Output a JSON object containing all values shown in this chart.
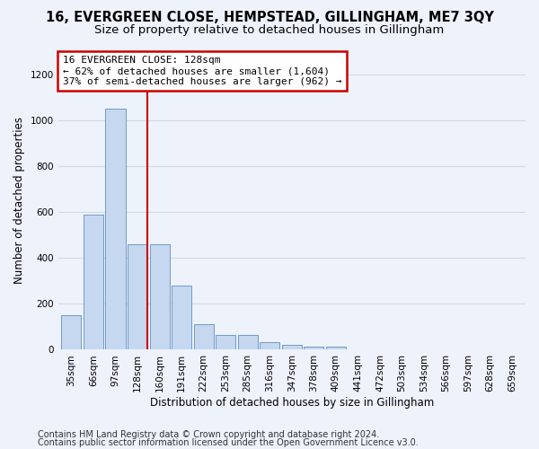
{
  "title": "16, EVERGREEN CLOSE, HEMPSTEAD, GILLINGHAM, ME7 3QY",
  "subtitle": "Size of property relative to detached houses in Gillingham",
  "xlabel": "Distribution of detached houses by size in Gillingham",
  "ylabel": "Number of detached properties",
  "categories": [
    "35sqm",
    "66sqm",
    "97sqm",
    "128sqm",
    "160sqm",
    "191sqm",
    "222sqm",
    "253sqm",
    "285sqm",
    "316sqm",
    "347sqm",
    "378sqm",
    "409sqm",
    "441sqm",
    "472sqm",
    "503sqm",
    "534sqm",
    "566sqm",
    "597sqm",
    "628sqm",
    "659sqm"
  ],
  "values": [
    150,
    590,
    1050,
    460,
    460,
    280,
    110,
    65,
    65,
    35,
    20,
    15,
    15,
    0,
    0,
    0,
    0,
    0,
    0,
    0,
    0
  ],
  "bar_color": "#c5d8f0",
  "bar_edge_color": "#6090c0",
  "vline_color": "#cc0000",
  "annotation_line1": "16 EVERGREEN CLOSE: 128sqm",
  "annotation_line2": "← 62% of detached houses are smaller (1,604)",
  "annotation_line3": "37% of semi-detached houses are larger (962) →",
  "annotation_box_color": "#ffffff",
  "annotation_box_edge_color": "#cc0000",
  "ylim": [
    0,
    1300
  ],
  "yticks": [
    0,
    200,
    400,
    600,
    800,
    1000,
    1200
  ],
  "background_color": "#eef2fb",
  "grid_color": "#d0d8e8",
  "title_fontsize": 10.5,
  "subtitle_fontsize": 9.5,
  "axis_label_fontsize": 8.5,
  "tick_fontsize": 7.5,
  "annotation_fontsize": 8,
  "footer_fontsize": 7
}
